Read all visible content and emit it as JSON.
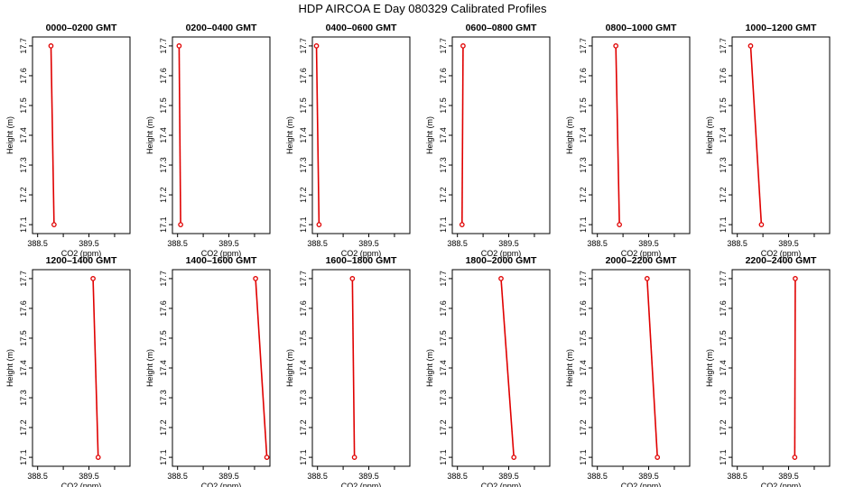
{
  "title": "HDP  AIRCOA E  Day 080329  Calibrated Profiles",
  "chart_data": {
    "type": "line",
    "xlabel": "CO2 (ppm)",
    "ylabel": "Height (m)",
    "xlim": [
      388.4,
      390.3
    ],
    "ylim": [
      17.07,
      17.73
    ],
    "xticks": [
      "388.5",
      "389.5"
    ],
    "xtick_values": [
      388.5,
      389.5
    ],
    "yticks": [
      "17.1",
      "17.2",
      "17.3",
      "17.4",
      "17.5",
      "17.6",
      "17.7"
    ],
    "ytick_values": [
      17.1,
      17.2,
      17.3,
      17.4,
      17.5,
      17.6,
      17.7
    ],
    "line_color": "#e00000",
    "panels": [
      {
        "title": "0000–0200 GMT",
        "points": [
          [
            388.76,
            17.7
          ],
          [
            388.82,
            17.1
          ]
        ]
      },
      {
        "title": "0200–0400 GMT",
        "points": [
          [
            388.53,
            17.7
          ],
          [
            388.56,
            17.1
          ]
        ]
      },
      {
        "title": "0400–0600 GMT",
        "points": [
          [
            388.48,
            17.7
          ],
          [
            388.53,
            17.1
          ]
        ]
      },
      {
        "title": "0600–0800 GMT",
        "points": [
          [
            388.61,
            17.7
          ],
          [
            388.59,
            17.1
          ]
        ]
      },
      {
        "title": "0800–1000 GMT",
        "points": [
          [
            388.86,
            17.7
          ],
          [
            388.93,
            17.1
          ]
        ]
      },
      {
        "title": "1000–1200 GMT",
        "points": [
          [
            388.76,
            17.7
          ],
          [
            388.97,
            17.1
          ]
        ]
      },
      {
        "title": "1200–1400 GMT",
        "points": [
          [
            389.58,
            17.7
          ],
          [
            389.68,
            17.1
          ]
        ]
      },
      {
        "title": "1400–1600 GMT",
        "points": [
          [
            390.02,
            17.7
          ],
          [
            390.24,
            17.1
          ]
        ]
      },
      {
        "title": "1600–1800 GMT",
        "points": [
          [
            389.18,
            17.7
          ],
          [
            389.22,
            17.1
          ]
        ]
      },
      {
        "title": "1800–2000 GMT",
        "points": [
          [
            389.35,
            17.7
          ],
          [
            389.6,
            17.1
          ]
        ]
      },
      {
        "title": "2000–2200 GMT",
        "points": [
          [
            389.47,
            17.7
          ],
          [
            389.67,
            17.1
          ]
        ]
      },
      {
        "title": "2200–2400 GMT",
        "points": [
          [
            389.63,
            17.7
          ],
          [
            389.62,
            17.1
          ]
        ]
      }
    ]
  }
}
